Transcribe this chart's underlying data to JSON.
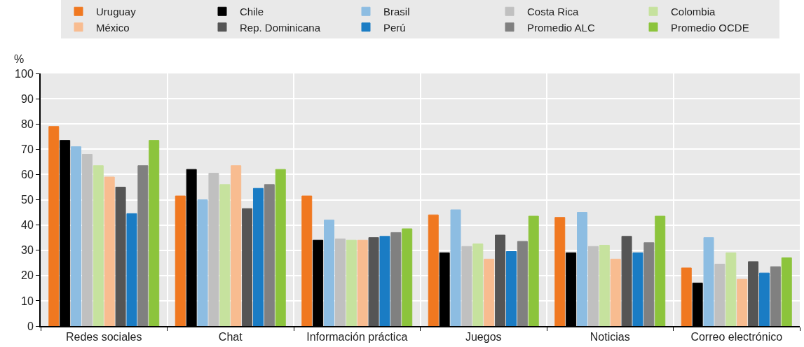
{
  "chart_data": {
    "type": "bar",
    "ylabel": "%",
    "categories": [
      "Redes sociales",
      "Chat",
      "Información práctica",
      "Juegos",
      "Noticias",
      "Correo electrónico"
    ],
    "ylim": [
      0,
      100
    ],
    "yticks": [
      0,
      10,
      20,
      30,
      40,
      50,
      60,
      70,
      80,
      90,
      100
    ],
    "grid": true,
    "legend": "top",
    "series": [
      {
        "name": "Uruguay",
        "color": "#f07820",
        "values": [
          79,
          51.5,
          51.5,
          44,
          43,
          23
        ]
      },
      {
        "name": "Chile",
        "color": "#000000",
        "values": [
          73.5,
          62,
          34,
          29,
          29,
          17
        ]
      },
      {
        "name": "Brasil",
        "color": "#8dbde2",
        "values": [
          71,
          50,
          42,
          46,
          45,
          35
        ]
      },
      {
        "name": "Costa Rica",
        "color": "#c0c0c0",
        "values": [
          68,
          60.5,
          34.5,
          31.5,
          31.5,
          24.5
        ]
      },
      {
        "name": "Colombia",
        "color": "#c6e29e",
        "values": [
          63.5,
          56,
          34,
          32.5,
          32,
          29
        ]
      },
      {
        "name": "México",
        "color": "#f8bc90",
        "values": [
          59,
          63.5,
          34,
          26.5,
          26.5,
          18.5
        ]
      },
      {
        "name": "Rep. Dominicana",
        "color": "#555555",
        "values": [
          55,
          46.5,
          35,
          36,
          35.5,
          25.5
        ]
      },
      {
        "name": "Perú",
        "color": "#1a7cc4",
        "values": [
          44.5,
          54.5,
          35.5,
          29.5,
          29,
          21
        ]
      },
      {
        "name": "Promedio ALC",
        "color": "#808080",
        "values": [
          63.5,
          56,
          37,
          33.5,
          33,
          23.5
        ]
      },
      {
        "name": "Promedio OCDE",
        "color": "#8cc43c",
        "values": [
          73.5,
          62,
          38.5,
          43.5,
          43.5,
          27
        ]
      }
    ]
  }
}
